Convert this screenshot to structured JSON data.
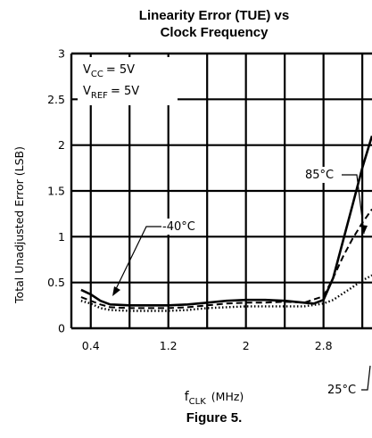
{
  "chart_data": {
    "type": "line",
    "title_line1": "Linearity Error (TUE) vs",
    "title_line2": "Clock Frequency",
    "caption": "Figure 5.",
    "xlabel_main": "f",
    "xlabel_sub": "CLK",
    "xlabel_unit": "(MHz)",
    "ylabel": "Total Unadjusted Error (LSB)",
    "xlim": [
      0.2,
      3.3
    ],
    "ylim": [
      0,
      3
    ],
    "xticks": [
      "0.4",
      "1.2",
      "2",
      "2.8"
    ],
    "yticks": [
      "0",
      "0.5",
      "1",
      "1.5",
      "2",
      "2.5",
      "3"
    ],
    "conditions": {
      "vcc_main": "V",
      "vcc_sub": "CC",
      "vcc_value": "= 5V",
      "vref_main": "V",
      "vref_sub": "REF",
      "vref_value": "= 5V"
    },
    "series": [
      {
        "name": "-40°C",
        "style": "solid",
        "x": [
          0.3,
          0.4,
          0.5,
          0.6,
          0.8,
          1.0,
          1.2,
          1.4,
          1.6,
          1.8,
          2.0,
          2.2,
          2.4,
          2.6,
          2.7,
          2.8,
          2.9,
          3.0,
          3.1,
          3.2,
          3.3
        ],
        "y": [
          0.42,
          0.37,
          0.3,
          0.26,
          0.25,
          0.25,
          0.25,
          0.26,
          0.28,
          0.3,
          0.31,
          0.31,
          0.3,
          0.28,
          0.27,
          0.31,
          0.55,
          0.95,
          1.35,
          1.75,
          2.1
        ]
      },
      {
        "name": "85°C",
        "style": "dashed",
        "x": [
          0.3,
          0.4,
          0.5,
          0.6,
          0.8,
          1.0,
          1.2,
          1.4,
          1.6,
          1.8,
          2.0,
          2.2,
          2.4,
          2.6,
          2.8,
          2.9,
          3.0,
          3.1,
          3.2,
          3.3
        ],
        "y": [
          0.34,
          0.3,
          0.26,
          0.23,
          0.22,
          0.22,
          0.22,
          0.23,
          0.25,
          0.27,
          0.28,
          0.28,
          0.29,
          0.28,
          0.35,
          0.55,
          0.78,
          0.98,
          1.15,
          1.3
        ]
      },
      {
        "name": "25°C",
        "style": "dotted",
        "x": [
          0.3,
          0.4,
          0.5,
          0.6,
          0.8,
          1.0,
          1.2,
          1.4,
          1.6,
          1.8,
          2.0,
          2.2,
          2.4,
          2.6,
          2.8,
          2.9,
          3.0,
          3.1,
          3.2,
          3.3
        ],
        "y": [
          0.3,
          0.27,
          0.22,
          0.2,
          0.19,
          0.19,
          0.19,
          0.2,
          0.22,
          0.23,
          0.24,
          0.24,
          0.24,
          0.24,
          0.27,
          0.31,
          0.38,
          0.45,
          0.52,
          0.58
        ]
      }
    ],
    "annotations": [
      {
        "text": "-40°C",
        "series": "-40°C"
      },
      {
        "text": "85°C",
        "series": "85°C"
      },
      {
        "text": "25°C",
        "series": "25°C"
      }
    ]
  }
}
